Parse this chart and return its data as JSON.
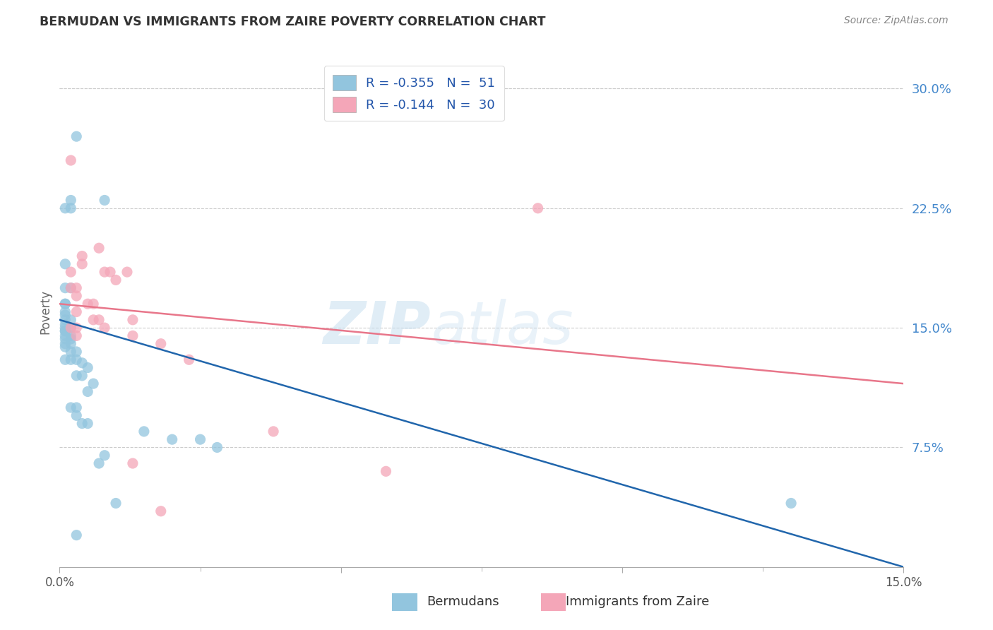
{
  "title": "BERMUDAN VS IMMIGRANTS FROM ZAIRE POVERTY CORRELATION CHART",
  "source": "Source: ZipAtlas.com",
  "ylabel": "Poverty",
  "right_yticks": [
    "30.0%",
    "22.5%",
    "15.0%",
    "7.5%"
  ],
  "right_ytick_vals": [
    0.3,
    0.225,
    0.15,
    0.075
  ],
  "xlim": [
    0.0,
    0.15
  ],
  "ylim": [
    0.0,
    0.32
  ],
  "legend_r1": "R = -0.355   N =  51",
  "legend_r2": "R = -0.144   N =  30",
  "color_blue": "#92c5de",
  "color_pink": "#f4a6b8",
  "line_blue": "#2166ac",
  "line_pink": "#e8768a",
  "blue_scatter_x": [
    0.003,
    0.008,
    0.002,
    0.001,
    0.002,
    0.001,
    0.001,
    0.002,
    0.001,
    0.001,
    0.001,
    0.001,
    0.001,
    0.002,
    0.001,
    0.001,
    0.002,
    0.001,
    0.001,
    0.002,
    0.001,
    0.001,
    0.002,
    0.001,
    0.002,
    0.001,
    0.002,
    0.003,
    0.001,
    0.002,
    0.003,
    0.004,
    0.005,
    0.003,
    0.004,
    0.006,
    0.005,
    0.002,
    0.003,
    0.003,
    0.004,
    0.005,
    0.015,
    0.02,
    0.025,
    0.028,
    0.008,
    0.007,
    0.01,
    0.13,
    0.003
  ],
  "blue_scatter_y": [
    0.27,
    0.23,
    0.23,
    0.225,
    0.225,
    0.19,
    0.175,
    0.175,
    0.165,
    0.165,
    0.16,
    0.158,
    0.155,
    0.155,
    0.152,
    0.15,
    0.15,
    0.148,
    0.148,
    0.145,
    0.145,
    0.143,
    0.143,
    0.14,
    0.14,
    0.138,
    0.135,
    0.135,
    0.13,
    0.13,
    0.13,
    0.128,
    0.125,
    0.12,
    0.12,
    0.115,
    0.11,
    0.1,
    0.1,
    0.095,
    0.09,
    0.09,
    0.085,
    0.08,
    0.08,
    0.075,
    0.07,
    0.065,
    0.04,
    0.04,
    0.02
  ],
  "pink_scatter_x": [
    0.002,
    0.007,
    0.004,
    0.004,
    0.002,
    0.002,
    0.003,
    0.003,
    0.005,
    0.006,
    0.008,
    0.009,
    0.01,
    0.012,
    0.003,
    0.006,
    0.007,
    0.003,
    0.002,
    0.003,
    0.008,
    0.013,
    0.013,
    0.085,
    0.018,
    0.023,
    0.038,
    0.013,
    0.018,
    0.058
  ],
  "pink_scatter_y": [
    0.255,
    0.2,
    0.195,
    0.19,
    0.185,
    0.175,
    0.175,
    0.17,
    0.165,
    0.165,
    0.185,
    0.185,
    0.18,
    0.185,
    0.16,
    0.155,
    0.155,
    0.15,
    0.15,
    0.145,
    0.15,
    0.155,
    0.145,
    0.225,
    0.14,
    0.13,
    0.085,
    0.065,
    0.035,
    0.06
  ],
  "blue_line_x": [
    0.0,
    0.15
  ],
  "blue_line_y": [
    0.155,
    0.0
  ],
  "pink_line_x": [
    0.0,
    0.15
  ],
  "pink_line_y": [
    0.165,
    0.115
  ],
  "watermark_zip": "ZIP",
  "watermark_atlas": "atlas",
  "background_color": "#ffffff",
  "grid_color": "#cccccc"
}
